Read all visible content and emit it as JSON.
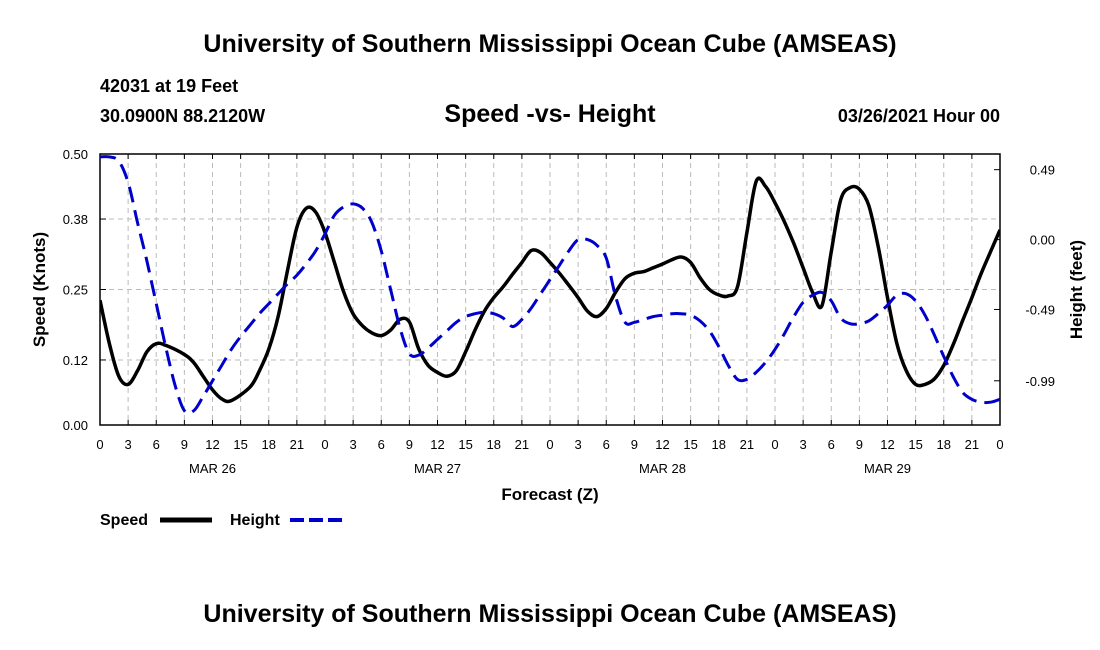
{
  "header": {
    "title": "University of Southern Mississippi Ocean Cube (AMSEAS)",
    "station": "42031 at 19 Feet",
    "coords": "30.0900N  88.2120W",
    "chart_title": "Speed -vs- Height",
    "date": "03/26/2021 Hour 00"
  },
  "footer": {
    "title": "University of Southern Mississippi Ocean Cube (AMSEAS)"
  },
  "legend": {
    "speed_label": "Speed",
    "height_label": "Height"
  },
  "colors": {
    "speed": "#000000",
    "height": "#0000cc",
    "grid": "#bbbbbb"
  },
  "chart_data": {
    "type": "line",
    "title": "Speed -vs- Height",
    "xlabel": "Forecast (Z)",
    "ylabel": "Speed (Knots)",
    "y2label": "Height (feet)",
    "xlim": [
      0,
      96
    ],
    "ylim": [
      0,
      0.5
    ],
    "y2lim": [
      -1.3,
      0.6
    ],
    "x_tick_labels": [
      "0",
      "3",
      "6",
      "9",
      "12",
      "15",
      "18",
      "21",
      "0",
      "3",
      "6",
      "9",
      "12",
      "15",
      "18",
      "21",
      "0",
      "3",
      "6",
      "9",
      "12",
      "15",
      "18",
      "21",
      "0",
      "3",
      "6",
      "9",
      "12",
      "15",
      "18",
      "21",
      "0"
    ],
    "day_labels": [
      {
        "label": "MAR 26",
        "x": 12
      },
      {
        "label": "MAR 27",
        "x": 36
      },
      {
        "label": "MAR 28",
        "x": 60
      },
      {
        "label": "MAR 29",
        "x": 84
      }
    ],
    "y_ticks": [
      0.0,
      0.12,
      0.25,
      0.38,
      0.5
    ],
    "y_tick_labels": [
      "0.00",
      "0.12",
      "0.25",
      "0.38",
      "0.50"
    ],
    "y2_ticks": [
      -0.99,
      -0.49,
      0.0,
      0.49
    ],
    "y2_tick_labels": [
      "-0.99",
      "-0.49",
      "0.00",
      "0.49"
    ],
    "grid": true,
    "series": [
      {
        "name": "Speed",
        "axis": "left",
        "style": "solid",
        "x": [
          0,
          1,
          2,
          3,
          4,
          5,
          6,
          7,
          9,
          10,
          11,
          12,
          13,
          14,
          16,
          17,
          18,
          19,
          20,
          21,
          22,
          23,
          24,
          25,
          26,
          27,
          28,
          29,
          30,
          31,
          32,
          33,
          34,
          35,
          36,
          37,
          38,
          39,
          40,
          41,
          42,
          43,
          44,
          45,
          46,
          47,
          48,
          49,
          50,
          51,
          52,
          53,
          54,
          55,
          56,
          57,
          58,
          59,
          60,
          61,
          62,
          63,
          64,
          65,
          66,
          67,
          68,
          69,
          70,
          71,
          72,
          73,
          74,
          75,
          76,
          77,
          78,
          79,
          80,
          81,
          82,
          83,
          84,
          85,
          86,
          87,
          88,
          89,
          90,
          91,
          92,
          93,
          94,
          95,
          96
        ],
        "values": [
          0.23,
          0.15,
          0.09,
          0.075,
          0.1,
          0.135,
          0.15,
          0.147,
          0.13,
          0.115,
          0.09,
          0.065,
          0.048,
          0.045,
          0.07,
          0.1,
          0.14,
          0.2,
          0.285,
          0.365,
          0.4,
          0.393,
          0.355,
          0.3,
          0.245,
          0.205,
          0.183,
          0.17,
          0.165,
          0.175,
          0.195,
          0.19,
          0.14,
          0.11,
          0.097,
          0.09,
          0.1,
          0.135,
          0.175,
          0.21,
          0.235,
          0.255,
          0.278,
          0.3,
          0.322,
          0.318,
          0.3,
          0.28,
          0.258,
          0.235,
          0.21,
          0.2,
          0.215,
          0.245,
          0.27,
          0.28,
          0.283,
          0.29,
          0.297,
          0.305,
          0.31,
          0.3,
          0.272,
          0.25,
          0.24,
          0.238,
          0.255,
          0.355,
          0.45,
          0.44,
          0.41,
          0.375,
          0.335,
          0.29,
          0.245,
          0.22,
          0.32,
          0.415,
          0.438,
          0.435,
          0.405,
          0.33,
          0.235,
          0.15,
          0.1,
          0.075,
          0.075,
          0.085,
          0.11,
          0.148,
          0.192,
          0.235,
          0.28,
          0.32,
          0.36
        ]
      },
      {
        "name": "Height",
        "axis": "right",
        "style": "dashed",
        "x": [
          0,
          1,
          2,
          3,
          4,
          5,
          6,
          7,
          8,
          9,
          10,
          11,
          12,
          13,
          14,
          15,
          16,
          17,
          18,
          19,
          20,
          21,
          22,
          23,
          24,
          25,
          26,
          27,
          28,
          29,
          30,
          31,
          32,
          33,
          34,
          35,
          36,
          37,
          38,
          39,
          40,
          41,
          42,
          43,
          44,
          45,
          46,
          47,
          48,
          49,
          50,
          51,
          52,
          53,
          54,
          55,
          56,
          57,
          58,
          59,
          60,
          61,
          62,
          63,
          64,
          65,
          66,
          67,
          68,
          69,
          70,
          71,
          72,
          73,
          74,
          75,
          76,
          77,
          78,
          79,
          80,
          81,
          82,
          83,
          84,
          85,
          86,
          87,
          88,
          89,
          90,
          91,
          92,
          93,
          94,
          95,
          96
        ],
        "values": [
          0.58,
          0.58,
          0.55,
          0.4,
          0.12,
          -0.15,
          -0.45,
          -0.75,
          -1.02,
          -1.2,
          -1.2,
          -1.1,
          -0.99,
          -0.88,
          -0.77,
          -0.68,
          -0.6,
          -0.52,
          -0.45,
          -0.38,
          -0.31,
          -0.25,
          -0.17,
          -0.08,
          0.04,
          0.17,
          0.23,
          0.25,
          0.22,
          0.12,
          -0.08,
          -0.35,
          -0.62,
          -0.8,
          -0.81,
          -0.76,
          -0.7,
          -0.64,
          -0.58,
          -0.54,
          -0.52,
          -0.51,
          -0.52,
          -0.55,
          -0.61,
          -0.56,
          -0.48,
          -0.38,
          -0.28,
          -0.18,
          -0.08,
          0.0,
          0.0,
          -0.04,
          -0.13,
          -0.4,
          -0.58,
          -0.58,
          -0.56,
          -0.54,
          -0.53,
          -0.52,
          -0.52,
          -0.53,
          -0.57,
          -0.64,
          -0.75,
          -0.88,
          -0.98,
          -0.98,
          -0.93,
          -0.86,
          -0.77,
          -0.66,
          -0.54,
          -0.44,
          -0.39,
          -0.37,
          -0.43,
          -0.55,
          -0.59,
          -0.59,
          -0.57,
          -0.52,
          -0.46,
          -0.39,
          -0.38,
          -0.43,
          -0.53,
          -0.67,
          -0.82,
          -0.96,
          -1.07,
          -1.12,
          -1.14,
          -1.14,
          -1.12
        ]
      }
    ]
  }
}
